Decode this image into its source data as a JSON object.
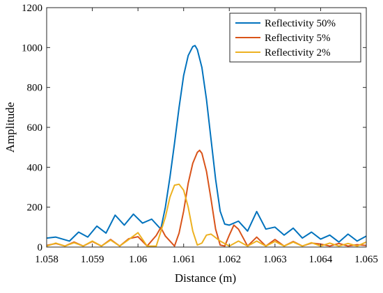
{
  "chart_data": {
    "type": "line",
    "title": "",
    "xlabel": "Distance (m)",
    "ylabel": "Amplitude",
    "xlim": [
      1.058,
      1.065
    ],
    "ylim": [
      0,
      1200
    ],
    "xticks": [
      1.058,
      1.059,
      1.06,
      1.061,
      1.062,
      1.063,
      1.064,
      1.065
    ],
    "xtick_labels": [
      "1.058",
      "1.059",
      "1.06",
      "1.061",
      "1.062",
      "1.063",
      "1.064",
      "1.065"
    ],
    "yticks": [
      0,
      200,
      400,
      600,
      800,
      1000,
      1200
    ],
    "ytick_labels": [
      "0",
      "200",
      "400",
      "600",
      "800",
      "1000",
      "1200"
    ],
    "grid": false,
    "legend_position": "top-right",
    "series": [
      {
        "name": "Reflectivity 50%",
        "color": "#0072BD",
        "x": [
          1.058,
          1.0582,
          1.0585,
          1.0587,
          1.0589,
          1.0591,
          1.0593,
          1.0595,
          1.0597,
          1.0599,
          1.0601,
          1.0603,
          1.0605,
          1.0606,
          1.0607,
          1.0608,
          1.0609,
          1.061,
          1.0611,
          1.0612,
          1.06125,
          1.0613,
          1.0614,
          1.0615,
          1.0616,
          1.0617,
          1.0618,
          1.0619,
          1.062,
          1.0622,
          1.0624,
          1.0626,
          1.0628,
          1.063,
          1.0632,
          1.0634,
          1.0636,
          1.0638,
          1.064,
          1.0642,
          1.0644,
          1.0646,
          1.0648,
          1.065
        ],
        "y": [
          45,
          50,
          30,
          75,
          50,
          105,
          70,
          160,
          110,
          165,
          120,
          140,
          90,
          200,
          350,
          520,
          700,
          860,
          960,
          1005,
          1010,
          990,
          900,
          740,
          540,
          340,
          180,
          115,
          110,
          130,
          80,
          178,
          90,
          100,
          60,
          95,
          45,
          75,
          40,
          60,
          25,
          65,
          30,
          55
        ],
        "values": [
          45,
          50,
          30,
          75,
          50,
          105,
          70,
          160,
          110,
          165,
          120,
          140,
          90,
          200,
          350,
          520,
          700,
          860,
          960,
          1005,
          1010,
          990,
          900,
          740,
          540,
          340,
          180,
          115,
          110,
          130,
          80,
          178,
          90,
          100,
          60,
          95,
          45,
          75,
          40,
          60,
          25,
          65,
          30,
          55
        ]
      },
      {
        "name": "Reflectivity 5%",
        "color": "#D95319",
        "x": [
          1.058,
          1.0582,
          1.0584,
          1.0586,
          1.0588,
          1.059,
          1.0592,
          1.0594,
          1.0596,
          1.0598,
          1.06,
          1.0602,
          1.0604,
          1.0605,
          1.0606,
          1.0608,
          1.0609,
          1.061,
          1.0611,
          1.0612,
          1.0613,
          1.06135,
          1.0614,
          1.0615,
          1.0616,
          1.0617,
          1.0618,
          1.0619,
          1.062,
          1.0621,
          1.0622,
          1.0624,
          1.0626,
          1.0628,
          1.063,
          1.0632,
          1.0634,
          1.0636,
          1.0638,
          1.064,
          1.0642,
          1.0644,
          1.0646,
          1.0648,
          1.065
        ],
        "y": [
          8,
          18,
          5,
          25,
          5,
          28,
          5,
          38,
          5,
          42,
          52,
          5,
          58,
          98,
          55,
          5,
          70,
          180,
          320,
          420,
          475,
          485,
          470,
          380,
          240,
          90,
          10,
          5,
          60,
          110,
          90,
          5,
          50,
          5,
          38,
          5,
          28,
          5,
          20,
          15,
          5,
          18,
          5,
          12,
          8
        ],
        "values": [
          8,
          18,
          5,
          25,
          5,
          28,
          5,
          38,
          5,
          42,
          52,
          5,
          58,
          98,
          55,
          5,
          70,
          180,
          320,
          420,
          475,
          485,
          470,
          380,
          240,
          90,
          10,
          5,
          60,
          110,
          90,
          5,
          50,
          5,
          38,
          5,
          28,
          5,
          20,
          15,
          5,
          18,
          5,
          12,
          8
        ]
      },
      {
        "name": "Reflectivity 2%",
        "color": "#EDB120",
        "x": [
          1.058,
          1.0582,
          1.0584,
          1.0586,
          1.0588,
          1.059,
          1.0592,
          1.0594,
          1.0596,
          1.0598,
          1.06,
          1.0602,
          1.0604,
          1.0606,
          1.0607,
          1.0608,
          1.0609,
          1.061,
          1.0611,
          1.0612,
          1.0613,
          1.0614,
          1.0615,
          1.0616,
          1.0618,
          1.062,
          1.0622,
          1.0624,
          1.0626,
          1.0628,
          1.063,
          1.0632,
          1.0634,
          1.0636,
          1.0638,
          1.064,
          1.0642,
          1.0644,
          1.0646,
          1.0648,
          1.065
        ],
        "y": [
          5,
          20,
          5,
          22,
          5,
          30,
          5,
          35,
          5,
          38,
          72,
          5,
          5,
          150,
          250,
          310,
          315,
          285,
          200,
          80,
          10,
          20,
          60,
          65,
          30,
          5,
          30,
          5,
          30,
          5,
          28,
          5,
          25,
          5,
          22,
          5,
          20,
          5,
          18,
          5,
          25
        ],
        "values": [
          5,
          20,
          5,
          22,
          5,
          30,
          5,
          35,
          5,
          38,
          72,
          5,
          5,
          150,
          250,
          310,
          315,
          285,
          200,
          80,
          10,
          20,
          60,
          65,
          30,
          5,
          30,
          5,
          30,
          5,
          28,
          5,
          25,
          5,
          22,
          5,
          20,
          5,
          18,
          5,
          25
        ]
      }
    ]
  }
}
